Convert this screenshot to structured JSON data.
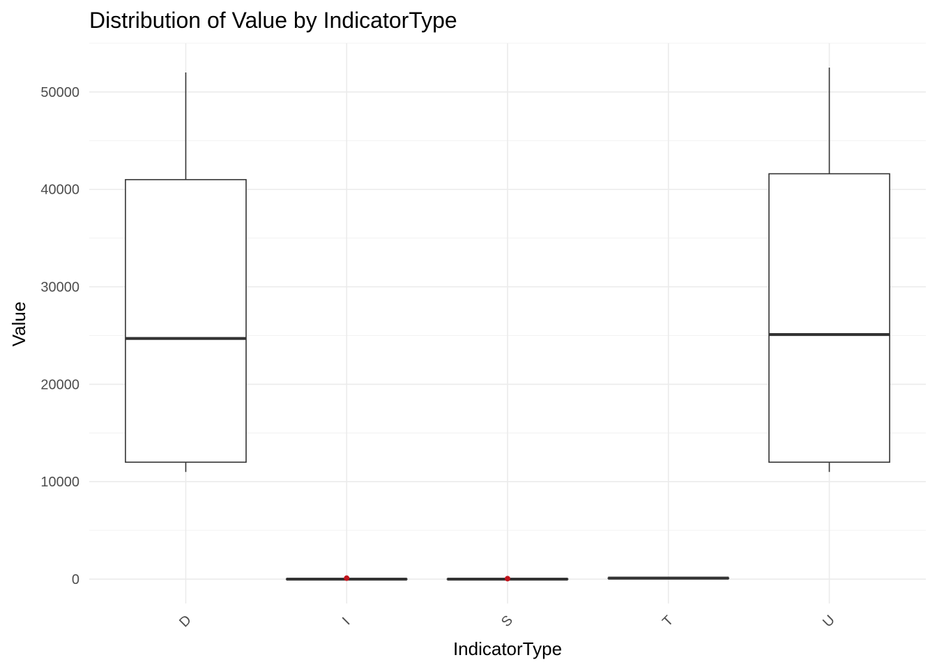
{
  "chart_data": {
    "type": "box",
    "title": "Distribution of Value by IndicatorType",
    "xlabel": "IndicatorType",
    "ylabel": "Value",
    "categories": [
      "D",
      "I",
      "S",
      "T",
      "U"
    ],
    "yticks": [
      0,
      10000,
      20000,
      30000,
      40000,
      50000
    ],
    "ytick_labels": [
      "0",
      "10000",
      "20000",
      "30000",
      "40000",
      "50000"
    ],
    "ylim": [
      -2500,
      55000
    ],
    "grid": true,
    "x_tick_rotation_deg": 45,
    "boxes": [
      {
        "category": "D",
        "min": 11000,
        "q1": 12000,
        "median": 24700,
        "q3": 41000,
        "max": 52000,
        "outliers": []
      },
      {
        "category": "I",
        "min": 0,
        "q1": 0,
        "median": 0,
        "q3": 0,
        "max": 0,
        "outliers": [
          100
        ]
      },
      {
        "category": "S",
        "min": 0,
        "q1": 0,
        "median": 0,
        "q3": 0,
        "max": 0,
        "outliers": [
          50
        ]
      },
      {
        "category": "T",
        "min": 100,
        "q1": 100,
        "median": 100,
        "q3": 100,
        "max": 100,
        "outliers": []
      },
      {
        "category": "U",
        "min": 11000,
        "q1": 12000,
        "median": 25100,
        "q3": 41600,
        "max": 52500,
        "outliers": []
      }
    ],
    "colors": {
      "box_stroke": "#333333",
      "outlier": "#c0141c",
      "grid": "#ebebeb",
      "tick_text": "#4d4d4d"
    }
  }
}
